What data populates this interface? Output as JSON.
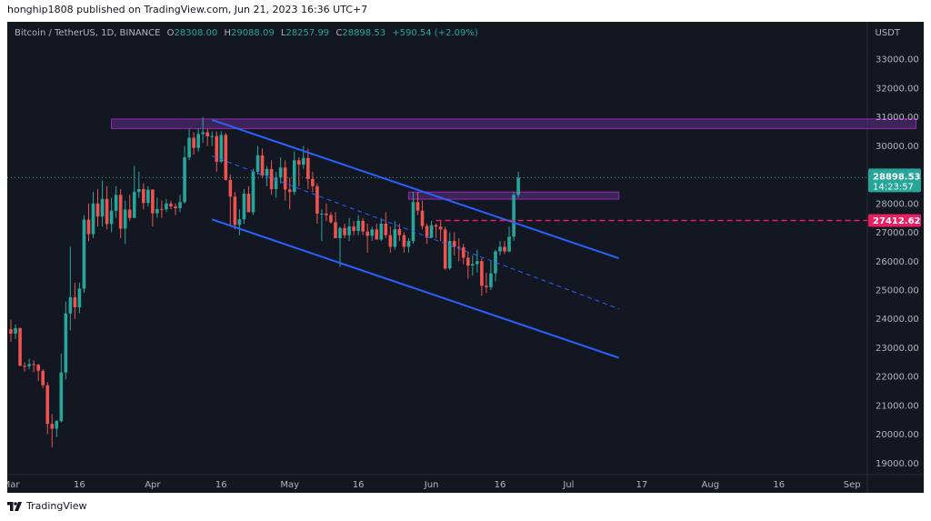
{
  "header": {
    "published_text": "honghip1808 published on TradingView.com, Jun 21, 2023 16:36 UTC+7"
  },
  "legend": {
    "symbol": "Bitcoin / TetherUS, 1D, BINANCE",
    "o_label": "O",
    "o_value": "28308.00",
    "h_label": "H",
    "h_value": "29088.09",
    "l_label": "L",
    "l_value": "28257.99",
    "c_label": "C",
    "c_value": "28898.53",
    "change": "+590.54 (+2.09%)"
  },
  "price_axis": {
    "currency": "USDT",
    "last_price": "28898.53",
    "countdown": "14:23:57",
    "line_price": "27412.62"
  },
  "footer": {
    "brand": "TradingView"
  },
  "colors": {
    "background": "#131722",
    "up": "#26a69a",
    "down": "#ef5350",
    "channel": "#2962ff",
    "zone_fill": "#4a2a6a",
    "zone_border": "#9c27b0",
    "line_dashed": "#e91e63",
    "axis_text": "#b2b5be"
  },
  "chart_data": {
    "type": "candlestick",
    "title": "Bitcoin / TetherUS, 1D, BINANCE",
    "ylabel": "USDT",
    "ylim": [
      18600,
      34300
    ],
    "y_ticks": [
      19000,
      20000,
      21000,
      22000,
      23000,
      24000,
      25000,
      26000,
      27000,
      28000,
      29000,
      30000,
      31000,
      32000,
      33000
    ],
    "x_ticks": [
      {
        "label": "Mar",
        "day": 0
      },
      {
        "label": "16",
        "day": 15
      },
      {
        "label": "Apr",
        "day": 31
      },
      {
        "label": "16",
        "day": 46
      },
      {
        "label": "May",
        "day": 61
      },
      {
        "label": "16",
        "day": 76
      },
      {
        "label": "Jun",
        "day": 92
      },
      {
        "label": "16",
        "day": 107
      },
      {
        "label": "Jul",
        "day": 122
      },
      {
        "label": "17",
        "day": 138
      },
      {
        "label": "Aug",
        "day": 153
      },
      {
        "label": "16",
        "day": 168
      },
      {
        "label": "Sep",
        "day": 184
      }
    ],
    "candles_start": "2023-03-01",
    "candles": [
      [
        23640,
        23970,
        23200,
        23490
      ],
      [
        23490,
        23800,
        23300,
        23680
      ],
      [
        23680,
        23700,
        22500,
        22370
      ],
      [
        22370,
        22500,
        22180,
        22360
      ],
      [
        22360,
        22620,
        22250,
        22430
      ],
      [
        22430,
        22560,
        22150,
        22410
      ],
      [
        22410,
        22440,
        21850,
        22200
      ],
      [
        22200,
        22250,
        21600,
        21700
      ],
      [
        21700,
        21800,
        20000,
        20360
      ],
      [
        20360,
        20700,
        19550,
        20190
      ],
      [
        20190,
        20500,
        19900,
        20460
      ],
      [
        20460,
        22800,
        20400,
        22140
      ],
      [
        22140,
        24600,
        21900,
        24190
      ],
      [
        24190,
        26500,
        23600,
        24750
      ],
      [
        24750,
        25250,
        24000,
        24400
      ],
      [
        24400,
        25250,
        24200,
        25050
      ],
      [
        25050,
        27600,
        24900,
        27440
      ],
      [
        27440,
        28000,
        26700,
        26940
      ],
      [
        26940,
        28400,
        26800,
        28000
      ],
      [
        28000,
        28500,
        27200,
        27550
      ],
      [
        27550,
        28800,
        27200,
        28160
      ],
      [
        28160,
        28600,
        27100,
        27290
      ],
      [
        27290,
        28200,
        27000,
        27750
      ],
      [
        27750,
        28600,
        27500,
        28300
      ],
      [
        28300,
        28500,
        26800,
        27130
      ],
      [
        27130,
        28100,
        26600,
        27790
      ],
      [
        27790,
        28300,
        27400,
        27500
      ],
      [
        27500,
        29300,
        27500,
        28400
      ],
      [
        28400,
        29100,
        28200,
        28500
      ],
      [
        28500,
        28700,
        27800,
        28020
      ],
      [
        28020,
        28600,
        27900,
        28480
      ],
      [
        28480,
        28500,
        27200,
        27660
      ],
      [
        27660,
        28200,
        27500,
        27810
      ],
      [
        27810,
        28100,
        27500,
        27800
      ],
      [
        27800,
        28150,
        27700,
        28000
      ],
      [
        28000,
        28100,
        27800,
        27900
      ],
      [
        27900,
        28000,
        27600,
        27840
      ],
      [
        27840,
        28300,
        27700,
        28050
      ],
      [
        28050,
        30000,
        28000,
        29600
      ],
      [
        29600,
        30600,
        29500,
        30280
      ],
      [
        30280,
        30480,
        29700,
        29930
      ],
      [
        29930,
        30600,
        29800,
        30410
      ],
      [
        30410,
        31000,
        30100,
        30470
      ],
      [
        30470,
        30600,
        30000,
        30330
      ],
      [
        30330,
        30500,
        30000,
        30340
      ],
      [
        30340,
        30500,
        29100,
        29450
      ],
      [
        29450,
        30500,
        29400,
        30380
      ],
      [
        30380,
        30450,
        28800,
        28820
      ],
      [
        28820,
        29000,
        27200,
        28240
      ],
      [
        28240,
        28400,
        27100,
        27260
      ],
      [
        27260,
        27800,
        26900,
        27450
      ],
      [
        27450,
        28500,
        27300,
        28340
      ],
      [
        28340,
        28600,
        27700,
        27700
      ],
      [
        27700,
        29200,
        27600,
        29100
      ],
      [
        29100,
        30000,
        29000,
        29670
      ],
      [
        29670,
        29900,
        28900,
        28970
      ],
      [
        28970,
        29300,
        28600,
        29200
      ],
      [
        29200,
        29500,
        28300,
        28500
      ],
      [
        28500,
        29100,
        28200,
        28900
      ],
      [
        28900,
        29600,
        28700,
        29250
      ],
      [
        29250,
        29500,
        28100,
        28490
      ],
      [
        28490,
        28900,
        27800,
        28400
      ],
      [
        28400,
        29800,
        28300,
        29500
      ],
      [
        29500,
        29600,
        28600,
        29350
      ],
      [
        29350,
        30000,
        29200,
        29580
      ],
      [
        29580,
        29900,
        28500,
        28850
      ],
      [
        28850,
        29100,
        28400,
        28600
      ],
      [
        28600,
        28700,
        27300,
        27650
      ],
      [
        27650,
        27800,
        26700,
        27650
      ],
      [
        27650,
        28000,
        27400,
        27600
      ],
      [
        27600,
        27700,
        27300,
        27350
      ],
      [
        27350,
        27700,
        26800,
        26800
      ],
      [
        26800,
        27200,
        25800,
        27150
      ],
      [
        27150,
        27300,
        26800,
        26900
      ],
      [
        26900,
        27500,
        26700,
        27200
      ],
      [
        27200,
        27400,
        26900,
        27050
      ],
      [
        27050,
        27600,
        26900,
        27400
      ],
      [
        27400,
        27500,
        26900,
        27030
      ],
      [
        27030,
        27300,
        26300,
        26880
      ],
      [
        26880,
        27200,
        26700,
        27100
      ],
      [
        27100,
        27300,
        26800,
        26750
      ],
      [
        26750,
        27500,
        26700,
        27300
      ],
      [
        27300,
        27700,
        26800,
        26900
      ],
      [
        26900,
        27200,
        26300,
        26500
      ],
      [
        26500,
        27400,
        26400,
        27110
      ],
      [
        27110,
        27300,
        26700,
        26900
      ],
      [
        26900,
        27000,
        26300,
        26500
      ],
      [
        26500,
        26800,
        26300,
        26700
      ],
      [
        26700,
        28400,
        26600,
        28050
      ],
      [
        28050,
        28400,
        27600,
        27750
      ],
      [
        27750,
        28100,
        27100,
        27220
      ],
      [
        27220,
        27300,
        26600,
        26820
      ],
      [
        26820,
        27400,
        26800,
        27250
      ],
      [
        27250,
        27300,
        26800,
        27200
      ],
      [
        27200,
        27400,
        26700,
        27100
      ],
      [
        27100,
        27200,
        25700,
        25750
      ],
      [
        25750,
        27000,
        25700,
        26700
      ],
      [
        26700,
        27000,
        26200,
        26500
      ],
      [
        26500,
        26800,
        26000,
        26480
      ],
      [
        26480,
        26600,
        25900,
        26120
      ],
      [
        26120,
        26300,
        25400,
        25850
      ],
      [
        25850,
        26200,
        25500,
        25900
      ],
      [
        25900,
        26400,
        25600,
        26000
      ],
      [
        26000,
        26100,
        24800,
        25150
      ],
      [
        25150,
        25600,
        24900,
        25100
      ],
      [
        25100,
        26000,
        25000,
        25580
      ],
      [
        25580,
        26400,
        25300,
        26340
      ],
      [
        26340,
        26700,
        26200,
        26500
      ],
      [
        26500,
        26700,
        26250,
        26340
      ],
      [
        26340,
        27200,
        26300,
        26850
      ],
      [
        26850,
        28400,
        26700,
        28300
      ],
      [
        28300,
        29100,
        28200,
        28898.53
      ]
    ],
    "annotations": [
      {
        "type": "zone",
        "label": "resistance zone",
        "from_day": 22,
        "to_day": 198,
        "low": 30600,
        "high": 30930
      },
      {
        "type": "zone",
        "label": "retest zone",
        "from_day": 87,
        "to_day": 133,
        "low": 28150,
        "high": 28400
      },
      {
        "type": "channel_upper",
        "from": [
          44,
          30900
        ],
        "to": [
          133,
          26100
        ]
      },
      {
        "type": "channel_mid",
        "from": [
          44,
          29650
        ],
        "to": [
          133,
          24350
        ],
        "dashed": true
      },
      {
        "type": "channel_lower",
        "from": [
          44,
          27450
        ],
        "to": [
          133,
          22650
        ]
      },
      {
        "type": "hline",
        "price": 27412.62,
        "from_day": 93,
        "dashed": true
      }
    ]
  }
}
